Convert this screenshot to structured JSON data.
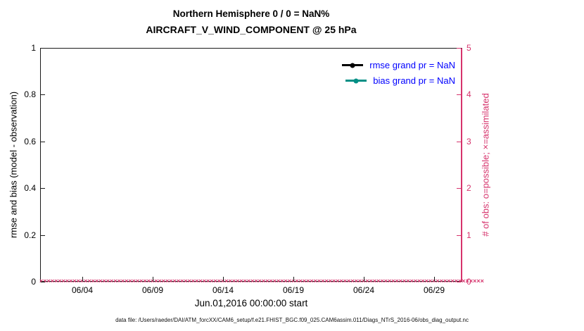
{
  "caption": "data file: /Users/raeder/DAI/ATM_forcXX/CAM6_setup/f.e21.FHIST_BGC.f09_025.CAM6assim.011/Diags_NTrS_2016-06/obs_diag_output.nc",
  "chart_data": {
    "type": "line",
    "title": "Northern Hemisphere 0 / 0 = NaN%",
    "subtitle": "AIRCRAFT_V_WIND_COMPONENT @ 25 hPa",
    "x_label": "Jun.01,2016 00:00:00 start",
    "x_tick_labels": [
      "06/04",
      "06/09",
      "06/14",
      "06/19",
      "06/24",
      "06/29"
    ],
    "x_tick_days": [
      4,
      9,
      14,
      19,
      24,
      29
    ],
    "x_range_days": [
      1,
      31
    ],
    "grid": false,
    "left_axis": {
      "label": "rmse and bias (model - observation)",
      "ylim": [
        0,
        1
      ],
      "ticks": [
        0,
        0.2,
        0.4,
        0.6,
        0.8,
        1
      ],
      "color": "#000000"
    },
    "right_axis": {
      "label": "# of obs: o=possible; ×=assimilated",
      "ylim": [
        0,
        5
      ],
      "ticks": [
        0,
        1,
        2,
        3,
        4,
        5
      ],
      "color": "#d6336c"
    },
    "series": [
      {
        "name": "rmse",
        "legend": "rmse grand pr = NaN",
        "color": "#000000",
        "marker": "circle",
        "values": "NaN",
        "note": "no curve plotted (all NaN)"
      },
      {
        "name": "bias",
        "legend": "bias grand pr = NaN",
        "color": "#008f85",
        "marker": "circle",
        "values": "NaN",
        "note": "no curve plotted (all NaN)"
      },
      {
        "name": "obs_assimilated",
        "marker": "x",
        "symbol": "×",
        "color": "#d6336c",
        "constant_value": 0,
        "n_points": 120,
        "note": "dense row of × markers along right-axis 0 line"
      }
    ],
    "legend": {
      "position": "top-right-inside",
      "text_color": "#0000ff",
      "entries": [
        {
          "label": "rmse grand pr = NaN",
          "color": "#000000"
        },
        {
          "label": "bias grand pr = NaN",
          "color": "#008f85"
        }
      ]
    }
  }
}
